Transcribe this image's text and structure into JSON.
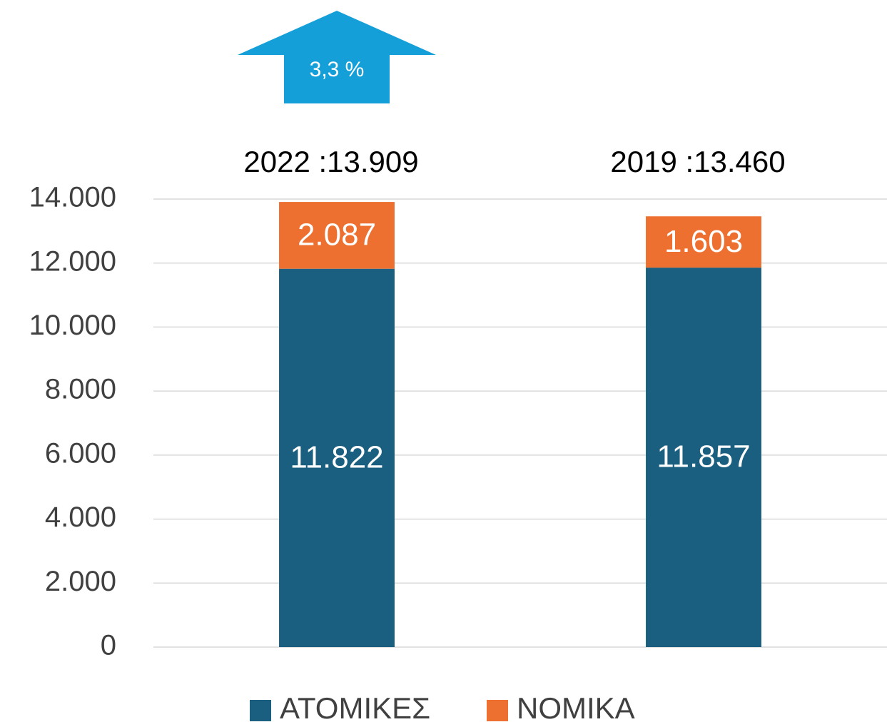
{
  "chart_data": {
    "type": "stacked_bar",
    "categories": [
      null,
      null
    ],
    "series": [
      {
        "name": "ΑΤΟΜΙΚΕΣ",
        "color": "#1a5f80",
        "values": [
          11822,
          11857
        ],
        "value_labels": [
          "11.822",
          "11.857"
        ]
      },
      {
        "name": "ΝΟΜΙΚΑ",
        "color": "#ed7031",
        "values": [
          2087,
          1603
        ],
        "value_labels": [
          "2.087",
          "1.603"
        ]
      }
    ],
    "total_labels": [
      "2022 :13.909",
      "2019 :13.460"
    ],
    "annotation": {
      "text": "3,3 %",
      "color": "#149fd8"
    },
    "ylim": [
      0,
      14000
    ],
    "yticks": [
      0,
      {
        "value": 2000,
        "label": "2.000"
      },
      {
        "value": 4000,
        "label": "4.000"
      },
      {
        "value": 6000,
        "label": "6.000"
      },
      {
        "value": 8000,
        "label": "8.000"
      },
      {
        "value": 10000,
        "label": "10.000"
      },
      {
        "value": 12000,
        "label": "12.000"
      },
      {
        "value": 14000,
        "label": "14.000"
      }
    ],
    "grid": true,
    "legend": "bottom"
  }
}
